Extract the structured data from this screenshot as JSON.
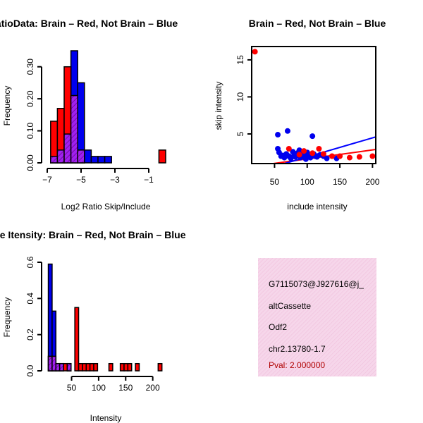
{
  "colors": {
    "red": "#ff0000",
    "blue": "#0000ee",
    "overlap": "#a020f0",
    "red_line": "#ff0000",
    "blue_line": "#0000ff",
    "info_bg": "#f6d6ea"
  },
  "chart_data": [
    {
      "type": "bar",
      "title": "RatioData: Brain – Red, Not Brain – Blue",
      "xlabel": "Log2 Ratio Skip/Include",
      "ylabel": "Frequency",
      "xlim": [
        -7,
        0
      ],
      "ylim": [
        0,
        0.35
      ],
      "xticks": [
        -7,
        -5,
        -3,
        -1
      ],
      "yticks": [
        0.0,
        0.1,
        0.2,
        0.3
      ],
      "ytick_labels": [
        "0.00",
        "0.10",
        "0.20",
        "0.30"
      ],
      "bin_width": 0.4,
      "series": [
        {
          "name": "Brain",
          "color": "red",
          "bins": [
            {
              "x0": -6.8,
              "value": 0.13
            },
            {
              "x0": -6.4,
              "value": 0.17
            },
            {
              "x0": -6.0,
              "value": 0.3
            },
            {
              "x0": -5.6,
              "value": 0.21
            },
            {
              "x0": -5.2,
              "value": 0.04
            },
            {
              "x0": -0.4,
              "value": 0.04
            }
          ]
        },
        {
          "name": "Not Brain",
          "color": "blue",
          "bins": [
            {
              "x0": -6.8,
              "value": 0.02
            },
            {
              "x0": -6.4,
              "value": 0.04
            },
            {
              "x0": -6.0,
              "value": 0.09
            },
            {
              "x0": -5.6,
              "value": 0.35
            },
            {
              "x0": -5.2,
              "value": 0.25
            },
            {
              "x0": -4.8,
              "value": 0.04
            },
            {
              "x0": -4.4,
              "value": 0.02
            },
            {
              "x0": -4.0,
              "value": 0.02
            },
            {
              "x0": -3.6,
              "value": 0.02
            }
          ]
        }
      ]
    },
    {
      "type": "scatter",
      "title": "Brain – Red, Not Brain – Blue",
      "xlabel": "include intensity",
      "ylabel": "skip intensity",
      "xlim": [
        15,
        205
      ],
      "ylim": [
        1,
        16.8
      ],
      "xticks": [
        50,
        100,
        150,
        200
      ],
      "yticks": [
        5,
        10,
        15
      ],
      "series": [
        {
          "name": "Brain",
          "color": "red",
          "points": [
            [
              20,
              16.1
            ],
            [
              72,
              3.0
            ],
            [
              95,
              2.7
            ],
            [
              118,
              3.0
            ],
            [
              125,
              2.3
            ],
            [
              138,
              2.0
            ],
            [
              150,
              2.0
            ],
            [
              165,
              1.8
            ],
            [
              180,
              1.9
            ],
            [
              200,
              2.0
            ],
            [
              88,
              2.2
            ],
            [
              108,
              2.4
            ]
          ]
        },
        {
          "name": "Not Brain",
          "color": "blue",
          "points": [
            [
              55,
              4.9
            ],
            [
              70,
              5.4
            ],
            [
              108,
              4.7
            ],
            [
              55,
              3.0
            ],
            [
              57,
              2.5
            ],
            [
              62,
              2.1
            ],
            [
              65,
              1.8
            ],
            [
              68,
              2.3
            ],
            [
              72,
              2.0
            ],
            [
              75,
              1.7
            ],
            [
              78,
              2.6
            ],
            [
              80,
              2.1
            ],
            [
              82,
              1.9
            ],
            [
              85,
              2.4
            ],
            [
              88,
              2.8
            ],
            [
              90,
              1.8
            ],
            [
              92,
              2.2
            ],
            [
              95,
              2.0
            ],
            [
              98,
              1.6
            ],
            [
              100,
              2.5
            ],
            [
              102,
              2.0
            ],
            [
              105,
              1.8
            ],
            [
              110,
              2.3
            ],
            [
              112,
              2.0
            ],
            [
              115,
              1.9
            ],
            [
              120,
              2.2
            ],
            [
              125,
              2.0
            ],
            [
              130,
              1.7
            ],
            [
              145,
              1.7
            ],
            [
              60,
              2.0
            ]
          ]
        }
      ],
      "lines": [
        {
          "name": "Brain fit",
          "color": "red_line",
          "from": [
            15,
            0.6
          ],
          "to": [
            205,
            2.9
          ]
        },
        {
          "name": "Not Brain fit",
          "color": "blue_line",
          "from": [
            15,
            -0.3
          ],
          "to": [
            205,
            4.6
          ]
        }
      ]
    },
    {
      "type": "bar",
      "title": "Gene Itensity: Brain – Red, Not Brain – Blue",
      "xlabel": "Intensity",
      "ylabel": "Frequency",
      "xlim": [
        5,
        220
      ],
      "ylim": [
        0,
        0.6
      ],
      "xticks": [
        50,
        100,
        150,
        200
      ],
      "yticks": [
        0.0,
        0.2,
        0.4,
        0.6
      ],
      "ytick_labels": [
        "0.0",
        "0.2",
        "0.4",
        "0.6"
      ],
      "bin_width": 7,
      "series": [
        {
          "name": "Brain",
          "color": "red",
          "bins": [
            {
              "x0": 7,
              "value": 0.08
            },
            {
              "x0": 14,
              "value": 0.08
            },
            {
              "x0": 21,
              "value": 0.04
            },
            {
              "x0": 28,
              "value": 0.04
            },
            {
              "x0": 35,
              "value": 0.04
            },
            {
              "x0": 42,
              "value": 0.04
            },
            {
              "x0": 56,
              "value": 0.35
            },
            {
              "x0": 63,
              "value": 0.04
            },
            {
              "x0": 70,
              "value": 0.04
            },
            {
              "x0": 77,
              "value": 0.04
            },
            {
              "x0": 84,
              "value": 0.04
            },
            {
              "x0": 91,
              "value": 0.04
            },
            {
              "x0": 119,
              "value": 0.04
            },
            {
              "x0": 140,
              "value": 0.04
            },
            {
              "x0": 147,
              "value": 0.04
            },
            {
              "x0": 154,
              "value": 0.04
            },
            {
              "x0": 168,
              "value": 0.04
            },
            {
              "x0": 210,
              "value": 0.04
            }
          ]
        },
        {
          "name": "Not Brain",
          "color": "blue",
          "bins": [
            {
              "x0": 7,
              "value": 0.59
            },
            {
              "x0": 14,
              "value": 0.33
            },
            {
              "x0": 21,
              "value": 0.04
            },
            {
              "x0": 28,
              "value": 0.04
            },
            {
              "x0": 42,
              "value": 0.04
            }
          ]
        }
      ]
    }
  ],
  "info_panel": {
    "id": "G7115073@J927616@j_",
    "type": "altCassette",
    "gene": "Odf2",
    "location": "chr2.13780-1.7",
    "pval": "Pval: 2.000000"
  }
}
